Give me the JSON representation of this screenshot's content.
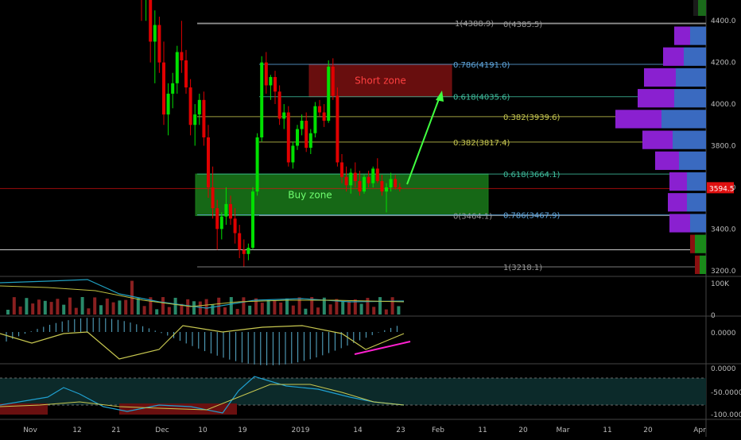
{
  "colors": {
    "background": "#000000",
    "up_candle": "#00e000",
    "down_candle": "#e00000",
    "grid_line": "#3a3a3a",
    "fib_grey": "#9a9a9a",
    "fib_yellow": "#c8c850",
    "fib_blue": "#60a8e0",
    "fib_teal": "#40c0a0",
    "buy_zone": "#1a7a1a",
    "short_zone": "#7a1010",
    "arrow": "#40ff40",
    "price_tag": "#e01010",
    "magenta": "#ff20d0"
  },
  "chart_data": {
    "type": "candlestick",
    "price_axis": {
      "ylim": [
        3180,
        4500
      ],
      "ticks": [
        "4400.0",
        "4200.0",
        "4000.0",
        "3800.0",
        "3600.0",
        "3400.0",
        "3200.0"
      ],
      "tick_values": [
        4400,
        4200,
        4000,
        3800,
        3600,
        3400,
        3200
      ]
    },
    "last_price": {
      "value": 3594.5,
      "label": "3594.5"
    },
    "time_axis": {
      "ticks": [
        "Nov",
        "12",
        "21",
        "Dec",
        "10",
        "19",
        "2019",
        "14",
        "23",
        "Feb",
        "11",
        "20",
        "Mar",
        "11",
        "20",
        "Apr"
      ]
    },
    "candles": [
      [
        6380,
        6420,
        6300,
        6350
      ],
      [
        6350,
        6380,
        5500,
        5600
      ],
      [
        5600,
        5700,
        5400,
        5550
      ],
      [
        5550,
        5600,
        5000,
        5100
      ],
      [
        5100,
        5300,
        4600,
        4700
      ],
      [
        4700,
        4900,
        4400,
        4500
      ],
      [
        4500,
        4650,
        4400,
        4560
      ],
      [
        4560,
        4600,
        4200,
        4300
      ],
      [
        4300,
        4450,
        4100,
        4380
      ],
      [
        4380,
        4420,
        4150,
        4200
      ],
      [
        4200,
        4300,
        3900,
        3950
      ],
      [
        3950,
        4100,
        3850,
        4050
      ],
      [
        4050,
        4150,
        3980,
        4100
      ],
      [
        4100,
        4280,
        4050,
        4250
      ],
      [
        4250,
        4400,
        4150,
        4210
      ],
      [
        4210,
        4260,
        4050,
        4080
      ],
      [
        4080,
        4120,
        3850,
        3900
      ],
      [
        3900,
        4000,
        3800,
        3950
      ],
      [
        3950,
        4050,
        3900,
        4020
      ],
      [
        4020,
        4060,
        3800,
        3840
      ],
      [
        3840,
        3900,
        3550,
        3600
      ],
      [
        3600,
        3700,
        3450,
        3500
      ],
      [
        3500,
        3540,
        3300,
        3400
      ],
      [
        3400,
        3480,
        3350,
        3460
      ],
      [
        3460,
        3600,
        3420,
        3520
      ],
      [
        3520,
        3560,
        3420,
        3450
      ],
      [
        3450,
        3500,
        3330,
        3380
      ],
      [
        3380,
        3420,
        3260,
        3300
      ],
      [
        3300,
        3350,
        3220,
        3280
      ],
      [
        3280,
        3330,
        3250,
        3310
      ],
      [
        3310,
        3600,
        3300,
        3580
      ],
      [
        3580,
        3860,
        3560,
        3840
      ],
      [
        3840,
        4230,
        3820,
        4200
      ],
      [
        4200,
        4250,
        4050,
        4090
      ],
      [
        4090,
        4140,
        4020,
        4130
      ],
      [
        4130,
        4160,
        4000,
        4060
      ],
      [
        4060,
        4090,
        3900,
        3930
      ],
      [
        3930,
        4000,
        3880,
        3960
      ],
      [
        3960,
        3990,
        3700,
        3720
      ],
      [
        3720,
        3820,
        3690,
        3800
      ],
      [
        3800,
        3900,
        3780,
        3880
      ],
      [
        3880,
        3950,
        3850,
        3920
      ],
      [
        3920,
        3960,
        3770,
        3790
      ],
      [
        3790,
        3880,
        3760,
        3860
      ],
      [
        3860,
        4010,
        3840,
        3990
      ],
      [
        3990,
        4020,
        3940,
        3960
      ],
      [
        3960,
        4000,
        3890,
        3920
      ],
      [
        3920,
        4210,
        3910,
        4180
      ],
      [
        4180,
        4220,
        4020,
        4040
      ],
      [
        4040,
        4080,
        3700,
        3720
      ],
      [
        3720,
        3760,
        3620,
        3650
      ],
      [
        3650,
        3700,
        3580,
        3610
      ],
      [
        3610,
        3690,
        3570,
        3670
      ],
      [
        3670,
        3720,
        3600,
        3630
      ],
      [
        3630,
        3680,
        3560,
        3580
      ],
      [
        3580,
        3660,
        3570,
        3650
      ],
      [
        3650,
        3680,
        3600,
        3620
      ],
      [
        3620,
        3700,
        3600,
        3690
      ],
      [
        3690,
        3740,
        3620,
        3630
      ],
      [
        3630,
        3660,
        3560,
        3580
      ],
      [
        3580,
        3620,
        3480,
        3600
      ],
      [
        3600,
        3670,
        3580,
        3640
      ],
      [
        3640,
        3660,
        3590,
        3600
      ],
      [
        3600,
        3620,
        3580,
        3594
      ]
    ],
    "fib_levels": [
      {
        "label": "1(4388.9)",
        "value": 4388.9,
        "side": "left",
        "color": "fib_grey"
      },
      {
        "label": "0(4385.5)",
        "value": 4385.5,
        "side": "right",
        "color": "fib_grey"
      },
      {
        "label": "0.786(4191.0)",
        "value": 4191.0,
        "side": "mid",
        "color": "fib_blue"
      },
      {
        "label": "0.618(4035.6)",
        "value": 4035.6,
        "side": "mid",
        "color": "fib_teal"
      },
      {
        "label": "0.382(3939.6)",
        "value": 3939.6,
        "side": "right",
        "color": "fib_yellow"
      },
      {
        "label": "0.382(3817.4)",
        "value": 3817.4,
        "side": "mid",
        "color": "fib_yellow"
      },
      {
        "label": "0.618(3664.1)",
        "value": 3664.1,
        "side": "right",
        "color": "fib_teal"
      },
      {
        "label": "0(3464.1)",
        "value": 3464.1,
        "side": "mid",
        "color": "fib_grey"
      },
      {
        "label": "0.786(3467.9)",
        "value": 3467.9,
        "side": "right",
        "color": "fib_blue"
      },
      {
        "label": "1(3218.1)",
        "value": 3218.1,
        "side": "right",
        "color": "fib_grey"
      }
    ],
    "zones": [
      {
        "label": "Buy zone",
        "top": 3664.1,
        "bottom": 3464.1,
        "color": "buy_zone"
      },
      {
        "label": "Short zone",
        "top": 4191.0,
        "bottom": 4035.6,
        "color": "short_zone"
      }
    ],
    "volume_profile": [
      {
        "price": 4470,
        "up": 10,
        "down": 6
      },
      {
        "price": 4330,
        "up": 20,
        "down": 20
      },
      {
        "price": 4230,
        "up": 28,
        "down": 26
      },
      {
        "price": 4130,
        "up": 38,
        "down": 40
      },
      {
        "price": 4030,
        "up": 40,
        "down": 46
      },
      {
        "price": 3930,
        "up": 56,
        "down": 58
      },
      {
        "price": 3830,
        "up": 42,
        "down": 38
      },
      {
        "price": 3730,
        "up": 34,
        "down": 30
      },
      {
        "price": 3630,
        "up": 24,
        "down": 22
      },
      {
        "price": 3530,
        "up": 24,
        "down": 24
      },
      {
        "price": 3430,
        "up": 20,
        "down": 26
      },
      {
        "price": 3330,
        "up": 14,
        "down": 6
      },
      {
        "price": 3230,
        "up": 8,
        "down": 6
      }
    ],
    "volume_pane": {
      "ticks": [
        "100K",
        "0"
      ]
    },
    "oscillator_pane": {
      "ticks": [
        "0.0000"
      ]
    },
    "rsi_pane": {
      "ticks": [
        "0.0000",
        "-50.0000",
        "-100.0000"
      ]
    }
  }
}
